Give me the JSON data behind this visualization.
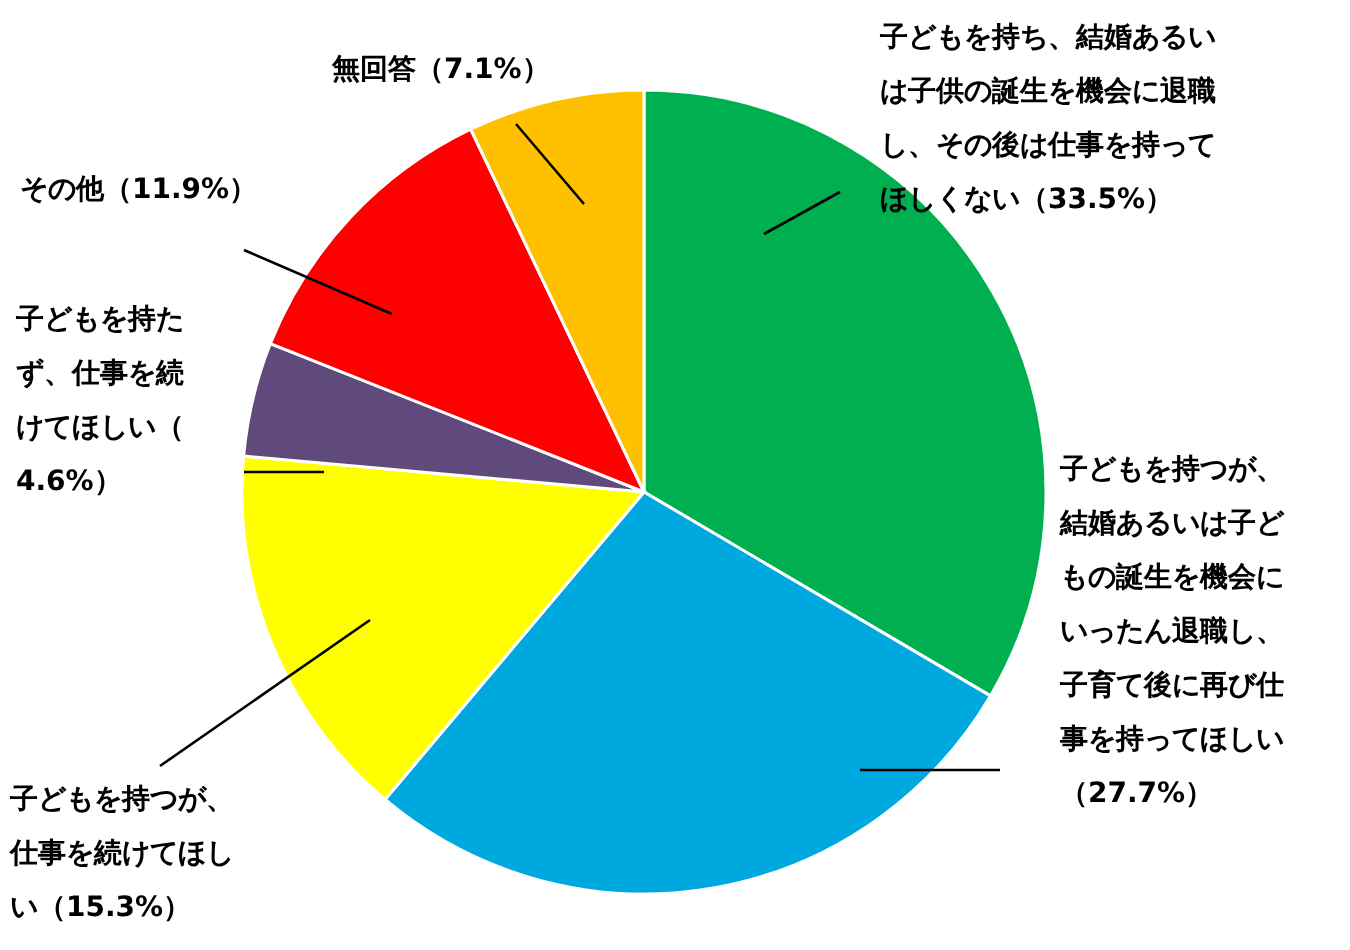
{
  "chart_data": {
    "type": "pie",
    "categories": [
      "子どもを持ち、結婚あるいは子供の誕生を機会に退職し、その後は仕事を持ってほしくない",
      "子どもを持つが、結婚あるいは子どもの誕生を機会にいったん退職し、子育て後に再び仕事を持ってほしい",
      "子どもを持つが、仕事を続けてほしい",
      "子どもを持たず、仕事を続けてほしい",
      "その他",
      "無回答"
    ],
    "values": [
      33.5,
      27.7,
      15.3,
      4.6,
      11.9,
      7.1
    ],
    "value_labels": [
      "（33.5%）",
      "（27.7%）",
      "（15.3%）",
      "（4.6%）",
      "（11.9%）",
      "（7.1%）"
    ],
    "colors": [
      "#00b050",
      "#00a8e0",
      "#ffff00",
      "#604a7b",
      "#ff0000",
      "#ffc000"
    ]
  }
}
